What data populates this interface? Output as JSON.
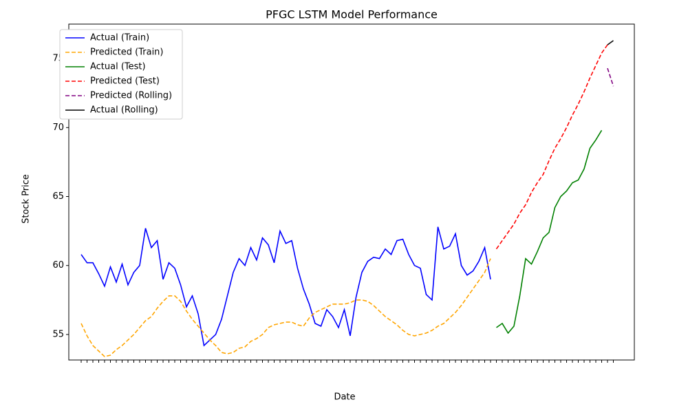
{
  "chart_data": {
    "type": "line",
    "title": "PFGC LSTM Model Performance",
    "x_label": "Date",
    "y_label": "Stock Price",
    "categories": [
      null,
      null,
      null,
      null,
      null,
      null,
      null,
      null,
      null,
      null,
      null,
      null,
      null,
      null,
      null,
      null,
      null,
      null,
      null,
      null,
      null,
      null,
      null,
      null,
      null,
      null,
      null,
      null,
      null,
      null,
      null,
      null,
      null,
      null,
      null,
      null,
      null,
      null,
      null,
      null,
      null,
      null,
      null,
      null,
      null,
      null,
      null,
      null,
      null,
      null,
      null,
      null,
      null,
      null,
      null,
      null,
      null,
      null,
      null,
      null,
      null,
      null,
      null,
      null,
      null,
      null,
      null,
      null,
      null,
      null,
      null,
      null,
      null,
      null,
      null,
      null,
      null,
      null,
      null,
      null,
      null,
      null,
      null,
      null,
      null,
      null,
      null,
      null,
      null,
      null,
      null,
      null
    ],
    "ylim": [
      53.15,
      77.5
    ],
    "yticks": [
      55,
      60,
      65,
      70,
      75
    ],
    "grid": false,
    "legend": "upper left",
    "series": [
      {
        "name": "Actual (Train)",
        "color": "#0000ff",
        "dashed": false,
        "values": [
          60.8,
          60.2,
          60.2,
          59.4,
          58.5,
          59.9,
          58.8,
          60.1,
          58.6,
          59.5,
          60.0,
          62.7,
          61.3,
          61.8,
          59.0,
          60.2,
          59.8,
          58.6,
          57.0,
          57.8,
          56.5,
          54.2,
          54.6,
          55.0,
          56.1,
          57.8,
          59.5,
          60.5,
          60.0,
          61.3,
          60.4,
          62.0,
          61.5,
          60.2,
          62.5,
          61.6,
          61.8,
          59.8,
          58.3,
          57.2,
          55.8,
          55.6,
          56.8,
          56.3,
          55.5,
          56.8,
          54.9,
          57.7,
          59.5,
          60.3,
          60.6,
          60.5,
          61.2,
          60.8,
          61.8,
          61.9,
          60.8,
          60.0,
          59.8,
          57.9,
          57.5,
          62.8,
          61.2,
          61.4,
          62.3,
          60.0,
          59.3,
          59.6,
          60.3,
          61.3,
          59.0,
          null,
          null,
          null,
          null,
          null,
          null,
          null,
          null,
          null,
          null,
          null,
          null,
          null,
          null,
          null,
          null,
          null,
          null,
          null,
          null,
          null
        ]
      },
      {
        "name": "Predicted (Train)",
        "color": "#ffa500",
        "dashed": true,
        "values": [
          55.8,
          54.9,
          54.2,
          53.8,
          53.4,
          53.5,
          53.9,
          54.2,
          54.6,
          55.0,
          55.5,
          56.0,
          56.3,
          56.9,
          57.4,
          57.8,
          57.8,
          57.4,
          56.7,
          56.1,
          55.6,
          55.1,
          54.6,
          54.2,
          53.7,
          53.6,
          53.7,
          54.0,
          54.1,
          54.5,
          54.7,
          55.0,
          55.5,
          55.7,
          55.8,
          55.9,
          55.9,
          55.7,
          55.6,
          56.2,
          56.6,
          56.8,
          57.0,
          57.2,
          57.2,
          57.2,
          57.3,
          57.5,
          57.5,
          57.4,
          57.1,
          56.7,
          56.3,
          56.0,
          55.7,
          55.3,
          55.0,
          54.9,
          55.0,
          55.1,
          55.3,
          55.6,
          55.8,
          56.2,
          56.6,
          57.1,
          57.7,
          58.3,
          58.9,
          59.5,
          60.5,
          null,
          null,
          null,
          null,
          null,
          null,
          null,
          null,
          null,
          null,
          null,
          null,
          null,
          null,
          null,
          null,
          null,
          null,
          null,
          null,
          null
        ]
      },
      {
        "name": "Actual (Test)",
        "color": "#008000",
        "dashed": false,
        "values": [
          null,
          null,
          null,
          null,
          null,
          null,
          null,
          null,
          null,
          null,
          null,
          null,
          null,
          null,
          null,
          null,
          null,
          null,
          null,
          null,
          null,
          null,
          null,
          null,
          null,
          null,
          null,
          null,
          null,
          null,
          null,
          null,
          null,
          null,
          null,
          null,
          null,
          null,
          null,
          null,
          null,
          null,
          null,
          null,
          null,
          null,
          null,
          null,
          null,
          null,
          null,
          null,
          null,
          null,
          null,
          null,
          null,
          null,
          null,
          null,
          null,
          null,
          null,
          null,
          null,
          null,
          null,
          null,
          null,
          null,
          null,
          55.5,
          55.8,
          55.1,
          55.6,
          57.8,
          60.5,
          60.1,
          61.0,
          62.0,
          62.4,
          64.2,
          65.0,
          65.4,
          66.0,
          66.2,
          67.0,
          68.5,
          69.1,
          69.8,
          null,
          null
        ]
      },
      {
        "name": "Predicted (Test)",
        "color": "#ff0000",
        "dashed": true,
        "values": [
          null,
          null,
          null,
          null,
          null,
          null,
          null,
          null,
          null,
          null,
          null,
          null,
          null,
          null,
          null,
          null,
          null,
          null,
          null,
          null,
          null,
          null,
          null,
          null,
          null,
          null,
          null,
          null,
          null,
          null,
          null,
          null,
          null,
          null,
          null,
          null,
          null,
          null,
          null,
          null,
          null,
          null,
          null,
          null,
          null,
          null,
          null,
          null,
          null,
          null,
          null,
          null,
          null,
          null,
          null,
          null,
          null,
          null,
          null,
          null,
          null,
          null,
          null,
          null,
          null,
          null,
          null,
          null,
          null,
          null,
          null,
          61.2,
          61.8,
          62.4,
          63.0,
          63.8,
          64.4,
          65.3,
          66.0,
          66.6,
          67.6,
          68.5,
          69.2,
          70.0,
          70.9,
          71.7,
          72.6,
          73.6,
          74.5,
          75.4,
          76.0,
          null
        ]
      },
      {
        "name": "Predicted (Rolling)",
        "color": "#800080",
        "dashed": true,
        "values": [
          null,
          null,
          null,
          null,
          null,
          null,
          null,
          null,
          null,
          null,
          null,
          null,
          null,
          null,
          null,
          null,
          null,
          null,
          null,
          null,
          null,
          null,
          null,
          null,
          null,
          null,
          null,
          null,
          null,
          null,
          null,
          null,
          null,
          null,
          null,
          null,
          null,
          null,
          null,
          null,
          null,
          null,
          null,
          null,
          null,
          null,
          null,
          null,
          null,
          null,
          null,
          null,
          null,
          null,
          null,
          null,
          null,
          null,
          null,
          null,
          null,
          null,
          null,
          null,
          null,
          null,
          null,
          null,
          null,
          null,
          null,
          null,
          null,
          null,
          null,
          null,
          null,
          null,
          null,
          null,
          null,
          null,
          null,
          null,
          null,
          null,
          null,
          null,
          null,
          null,
          74.3,
          73.0
        ]
      },
      {
        "name": "Actual (Rolling)",
        "color": "#000000",
        "dashed": false,
        "values": [
          null,
          null,
          null,
          null,
          null,
          null,
          null,
          null,
          null,
          null,
          null,
          null,
          null,
          null,
          null,
          null,
          null,
          null,
          null,
          null,
          null,
          null,
          null,
          null,
          null,
          null,
          null,
          null,
          null,
          null,
          null,
          null,
          null,
          null,
          null,
          null,
          null,
          null,
          null,
          null,
          null,
          null,
          null,
          null,
          null,
          null,
          null,
          null,
          null,
          null,
          null,
          null,
          null,
          null,
          null,
          null,
          null,
          null,
          null,
          null,
          null,
          null,
          null,
          null,
          null,
          null,
          null,
          null,
          null,
          null,
          null,
          null,
          null,
          null,
          null,
          null,
          null,
          null,
          null,
          null,
          null,
          null,
          null,
          null,
          null,
          null,
          null,
          null,
          null,
          null,
          76.0,
          76.3
        ]
      }
    ]
  }
}
